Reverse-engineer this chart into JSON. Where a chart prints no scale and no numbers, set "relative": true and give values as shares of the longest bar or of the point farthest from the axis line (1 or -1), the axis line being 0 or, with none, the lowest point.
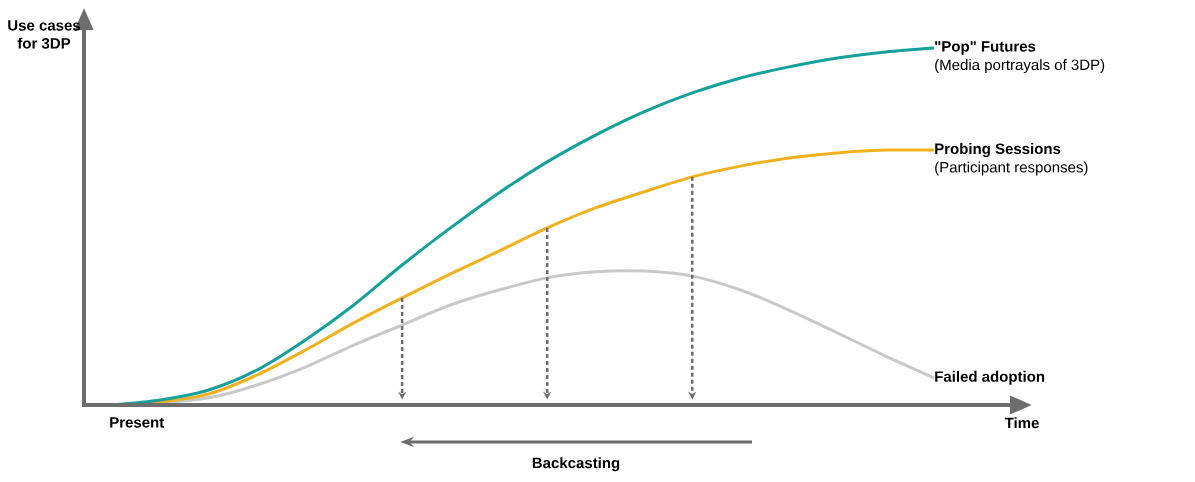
{
  "chart_data": {
    "type": "line",
    "relative": true,
    "ylabel": "Use cases for 3DP",
    "xlabel": "Time",
    "categories": [
      null,
      null,
      null,
      null,
      null,
      null,
      null,
      null,
      null,
      null,
      null,
      null,
      null,
      null,
      null,
      null,
      null,
      null
    ],
    "series": [
      {
        "name": "\"Pop\" Futures",
        "color": "#14a09b",
        "values": [
          0,
          0.014,
          0.042,
          0.098,
          0.182,
          0.28,
          0.392,
          0.496,
          0.594,
          0.681,
          0.756,
          0.821,
          0.874,
          0.916,
          0.947,
          0.972,
          0.989,
          1
        ]
      },
      {
        "name": "Probing Sessions",
        "color": "#f0b11c",
        "values": [
          0,
          0.008,
          0.031,
          0.084,
          0.154,
          0.23,
          0.3,
          0.367,
          0.431,
          0.496,
          0.552,
          0.597,
          0.639,
          0.669,
          0.692,
          0.706,
          0.714,
          0.714
        ]
      },
      {
        "name": "Failed adoption",
        "color": "#c9c9c9",
        "values": [
          0,
          0.006,
          0.02,
          0.056,
          0.106,
          0.168,
          0.224,
          0.28,
          0.322,
          0.356,
          0.373,
          0.375,
          0.361,
          0.322,
          0.266,
          0.202,
          0.137,
          0.076
        ]
      }
    ],
    "annotations": [
      "Present",
      "Backcasting",
      "(Media portrayals of 3DP)",
      "(Participant responses)"
    ],
    "marker": "none",
    "line_style": "solid"
  }
}
